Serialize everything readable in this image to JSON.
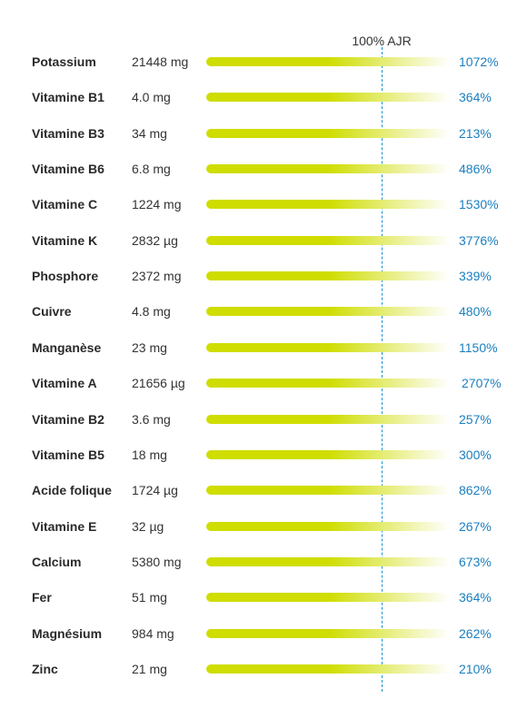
{
  "colors": {
    "bar_start": "#cfdd00",
    "bar_end": "#ffffff",
    "reference_line": "#1a8fd0",
    "percent_text": "#1a7fbf"
  },
  "chart_data": {
    "type": "bar",
    "orientation": "horizontal",
    "reference": {
      "value": 100,
      "label": "100% AJR"
    },
    "rows": [
      {
        "name": "Potassium",
        "amount": "21448 mg",
        "percent_label": "1072%",
        "percent": 1072
      },
      {
        "name": "Vitamine B1",
        "amount": "4.0 mg",
        "percent_label": "364%",
        "percent": 364
      },
      {
        "name": "Vitamine B3",
        "amount": "34 mg",
        "percent_label": "213%",
        "percent": 213
      },
      {
        "name": "Vitamine B6",
        "amount": "6.8 mg",
        "percent_label": "486%",
        "percent": 486
      },
      {
        "name": "Vitamine C",
        "amount": "1224 mg",
        "percent_label": "1530%",
        "percent": 1530
      },
      {
        "name": "Vitamine K",
        "amount": "2832 µg",
        "percent_label": "3776%",
        "percent": 3776
      },
      {
        "name": "Phosphore",
        "amount": "2372 mg",
        "percent_label": "339%",
        "percent": 339
      },
      {
        "name": "Cuivre",
        "amount": "4.8 mg",
        "percent_label": "480%",
        "percent": 480
      },
      {
        "name": "Manganèse",
        "amount": "23 mg",
        "percent_label": "1150%",
        "percent": 1150
      },
      {
        "name": "Vitamine A",
        "amount": "21656 µg",
        "percent_label": "2707%",
        "percent": 2707
      },
      {
        "name": "Vitamine B2",
        "amount": "3.6 mg",
        "percent_label": "257%",
        "percent": 257
      },
      {
        "name": "Vitamine B5",
        "amount": "18 mg",
        "percent_label": "300%",
        "percent": 300
      },
      {
        "name": "Acide folique",
        "amount": "1724 µg",
        "percent_label": "862%",
        "percent": 862
      },
      {
        "name": "Vitamine E",
        "amount": "32 µg",
        "percent_label": "267%",
        "percent": 267
      },
      {
        "name": "Calcium",
        "amount": "5380 mg",
        "percent_label": "673%",
        "percent": 673
      },
      {
        "name": "Fer",
        "amount": "51 mg",
        "percent_label": "364%",
        "percent": 364
      },
      {
        "name": "Magnésium",
        "amount": "984 mg",
        "percent_label": "262%",
        "percent": 262
      },
      {
        "name": "Zinc",
        "amount": "21 mg",
        "percent_label": "210%",
        "percent": 210
      }
    ]
  }
}
